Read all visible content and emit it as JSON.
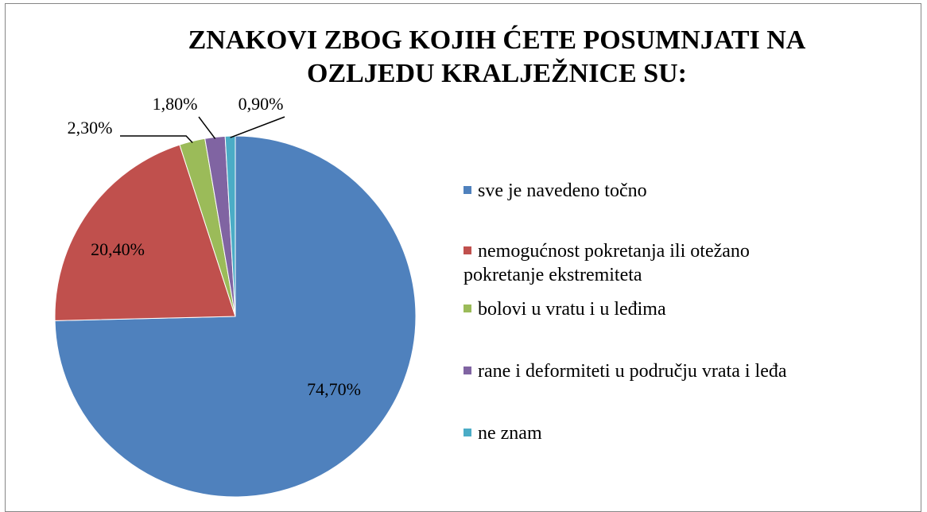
{
  "chart_data": {
    "type": "pie",
    "title": "ZNAKOVI ZBOG KOJIH ĆETE POSUMNJATI NA OZLJEDU KRALJEŽNICE SU:",
    "categories": [
      "sve je navedeno točno",
      "nemogućnost pokretanja ili otežano pokretanje ekstremiteta",
      "bolovi u vratu i u leđima",
      "rane i deformiteti u području vrata i leđa",
      "ne znam"
    ],
    "values": [
      74.7,
      20.4,
      2.3,
      1.8,
      0.9
    ],
    "value_labels": [
      "74,70%",
      "20,40%",
      "2,30%",
      "1,80%",
      "0,90%"
    ],
    "colors": [
      "#4f81bd",
      "#c0504d",
      "#9bbb59",
      "#8064a2",
      "#4bacc6"
    ],
    "legend": "right"
  }
}
